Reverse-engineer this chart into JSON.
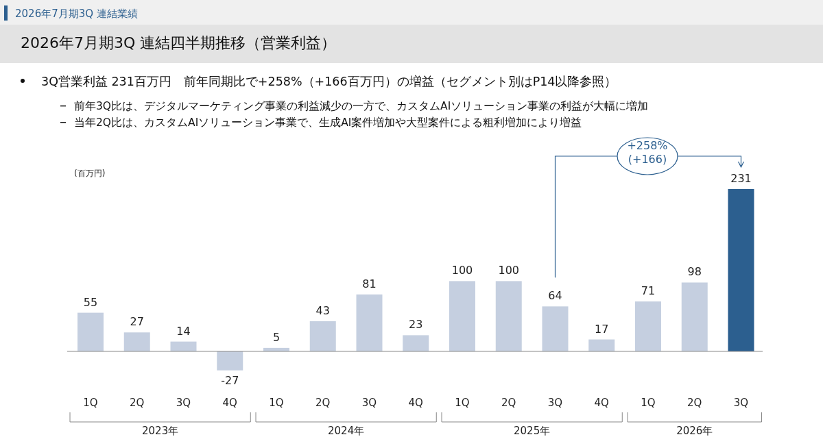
{
  "chart_data": {
    "type": "bar",
    "subtitle": "2026年7月期3Q 連結業績",
    "title": "2026年7月期3Q 連結四半期推移（営業利益）",
    "ylabel": "(百万円)",
    "categories": [
      "1Q",
      "2Q",
      "3Q",
      "4Q",
      "1Q",
      "2Q",
      "3Q",
      "4Q",
      "1Q",
      "2Q",
      "3Q",
      "4Q",
      "1Q",
      "2Q",
      "3Q"
    ],
    "values": [
      55,
      27,
      14,
      -27,
      5,
      43,
      81,
      23,
      100,
      100,
      64,
      17,
      71,
      98,
      231
    ],
    "colors": [
      "#c5cfe0",
      "#c5cfe0",
      "#c5cfe0",
      "#c5cfe0",
      "#c5cfe0",
      "#c5cfe0",
      "#c5cfe0",
      "#c5cfe0",
      "#c5cfe0",
      "#c5cfe0",
      "#c5cfe0",
      "#c5cfe0",
      "#c5cfe0",
      "#c5cfe0",
      "#2c5f8f"
    ],
    "data_labels": true,
    "annotations": [
      "3Q営業利益 231百万円　前年同期比で+258%（+166百万円）の増益（セグメント別はP14以降参照）",
      "前年3Q比は、デジタルマーケティング事業の利益減少の一方で、カスタムAIソリューション事業の利益が大幅に増加",
      "当年2Q比は、カスタムAIソリューション事業で、生成AI案件増加や大型案件による粗利増加により増益",
      "+258%\n(+166)",
      "2023年",
      "2024年",
      "2025年",
      "2026年"
    ]
  }
}
